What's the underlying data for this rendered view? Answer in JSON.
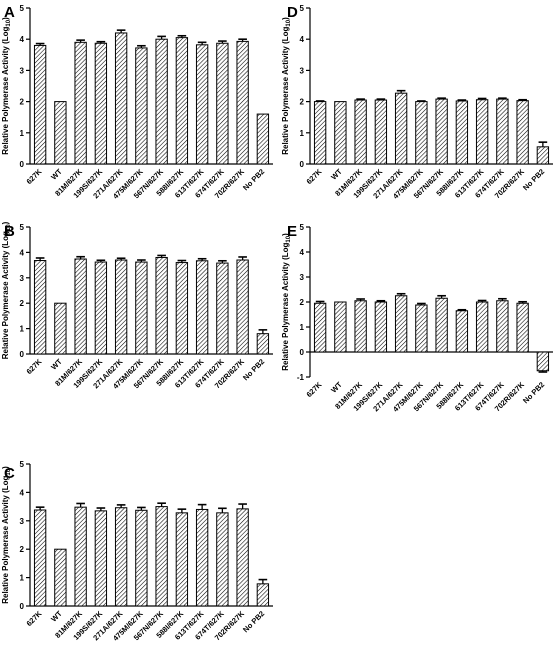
{
  "figure": {
    "panels": [
      "A",
      "B",
      "C",
      "D",
      "E"
    ]
  },
  "chart_data": [
    {
      "type": "bar",
      "panel": "A",
      "ylabel": "Relative Polymerase Activity (Log10)",
      "ylim": [
        0,
        5
      ],
      "yticks": [
        0,
        1,
        2,
        3,
        4,
        5
      ],
      "categories": [
        "627K",
        "WT",
        "81M/627K",
        "199S/627K",
        "271A/627K",
        "475M/627K",
        "567N/627K",
        "588I/627K",
        "613T/627K",
        "674T/627K",
        "702R/627K",
        "No PB2"
      ],
      "values": [
        3.8,
        2.0,
        3.9,
        3.87,
        4.2,
        3.72,
        4.0,
        4.05,
        3.82,
        3.87,
        3.93,
        1.6
      ],
      "errors": [
        0.06,
        0.0,
        0.07,
        0.05,
        0.09,
        0.07,
        0.09,
        0.06,
        0.08,
        0.07,
        0.07,
        0.0
      ],
      "fill": "diagonal hatch"
    },
    {
      "type": "bar",
      "panel": "B",
      "ylabel": "Relative Polymerase Activity (Log10)",
      "ylim": [
        0,
        5
      ],
      "yticks": [
        0,
        1,
        2,
        3,
        4,
        5
      ],
      "categories": [
        "627K",
        "WT",
        "81M/627K",
        "199S/627K",
        "271A/627K",
        "475M/627K",
        "567N/627K",
        "588I/627K",
        "613T/627K",
        "674T/627K",
        "702R/627K",
        "No PB2"
      ],
      "values": [
        3.68,
        2.0,
        3.74,
        3.62,
        3.7,
        3.62,
        3.8,
        3.6,
        3.67,
        3.58,
        3.7,
        0.8
      ],
      "errors": [
        0.1,
        0.0,
        0.09,
        0.07,
        0.07,
        0.08,
        0.08,
        0.08,
        0.08,
        0.09,
        0.12,
        0.15
      ],
      "fill": "diagonal hatch"
    },
    {
      "type": "bar",
      "panel": "C",
      "ylabel": "Relative Polymerase Activity (Log10)",
      "ylim": [
        0,
        5
      ],
      "yticks": [
        0,
        1,
        2,
        3,
        4,
        5
      ],
      "categories": [
        "627K",
        "WT",
        "81M/627K",
        "199S/627K",
        "271A/627K",
        "475M/627K",
        "567N/627K",
        "588I/627K",
        "613T/627K",
        "674T/627K",
        "702R/627K",
        "No PB2"
      ],
      "values": [
        3.38,
        2.0,
        3.48,
        3.35,
        3.46,
        3.37,
        3.5,
        3.28,
        3.4,
        3.28,
        3.42,
        0.78
      ],
      "errors": [
        0.1,
        0.0,
        0.13,
        0.1,
        0.1,
        0.1,
        0.12,
        0.13,
        0.17,
        0.16,
        0.17,
        0.15
      ],
      "fill": "diagonal hatch"
    },
    {
      "type": "bar",
      "panel": "D",
      "ylabel": "Relative Polymerase Activity (Log10)",
      "ylim": [
        0,
        5
      ],
      "yticks": [
        0,
        1,
        2,
        3,
        4,
        5
      ],
      "categories": [
        "627K",
        "WT",
        "81M/627K",
        "199S/627K",
        "271A/627K",
        "475M/627K",
        "567N/627K",
        "588I/627K",
        "613T/627K",
        "674T/627K",
        "702R/627K",
        "No PB2"
      ],
      "values": [
        2.0,
        2.0,
        2.05,
        2.05,
        2.27,
        2.0,
        2.08,
        2.02,
        2.06,
        2.08,
        2.03,
        0.55
      ],
      "errors": [
        0.02,
        0.0,
        0.03,
        0.03,
        0.08,
        0.02,
        0.03,
        0.03,
        0.04,
        0.03,
        0.03,
        0.15
      ],
      "fill": "diagonal hatch"
    },
    {
      "type": "bar",
      "panel": "E",
      "ylabel": "Relative Polymerase Activity (Log10)",
      "ylim": [
        -1,
        5
      ],
      "yticks": [
        -1,
        0,
        1,
        2,
        3,
        4,
        5
      ],
      "categories": [
        "627K",
        "WT",
        "81M/627K",
        "199S/627K",
        "271A/627K",
        "475M/627K",
        "567N/627K",
        "588I/627K",
        "613T/627K",
        "674T/627K",
        "702R/627K",
        "No PB2"
      ],
      "values": [
        1.95,
        2.0,
        2.05,
        2.0,
        2.25,
        1.88,
        2.15,
        1.65,
        2.0,
        2.05,
        1.95,
        -0.75
      ],
      "errors": [
        0.07,
        0.0,
        0.07,
        0.05,
        0.08,
        0.06,
        0.1,
        0.04,
        0.06,
        0.08,
        0.06,
        0.05
      ],
      "fill": "diagonal hatch"
    }
  ]
}
